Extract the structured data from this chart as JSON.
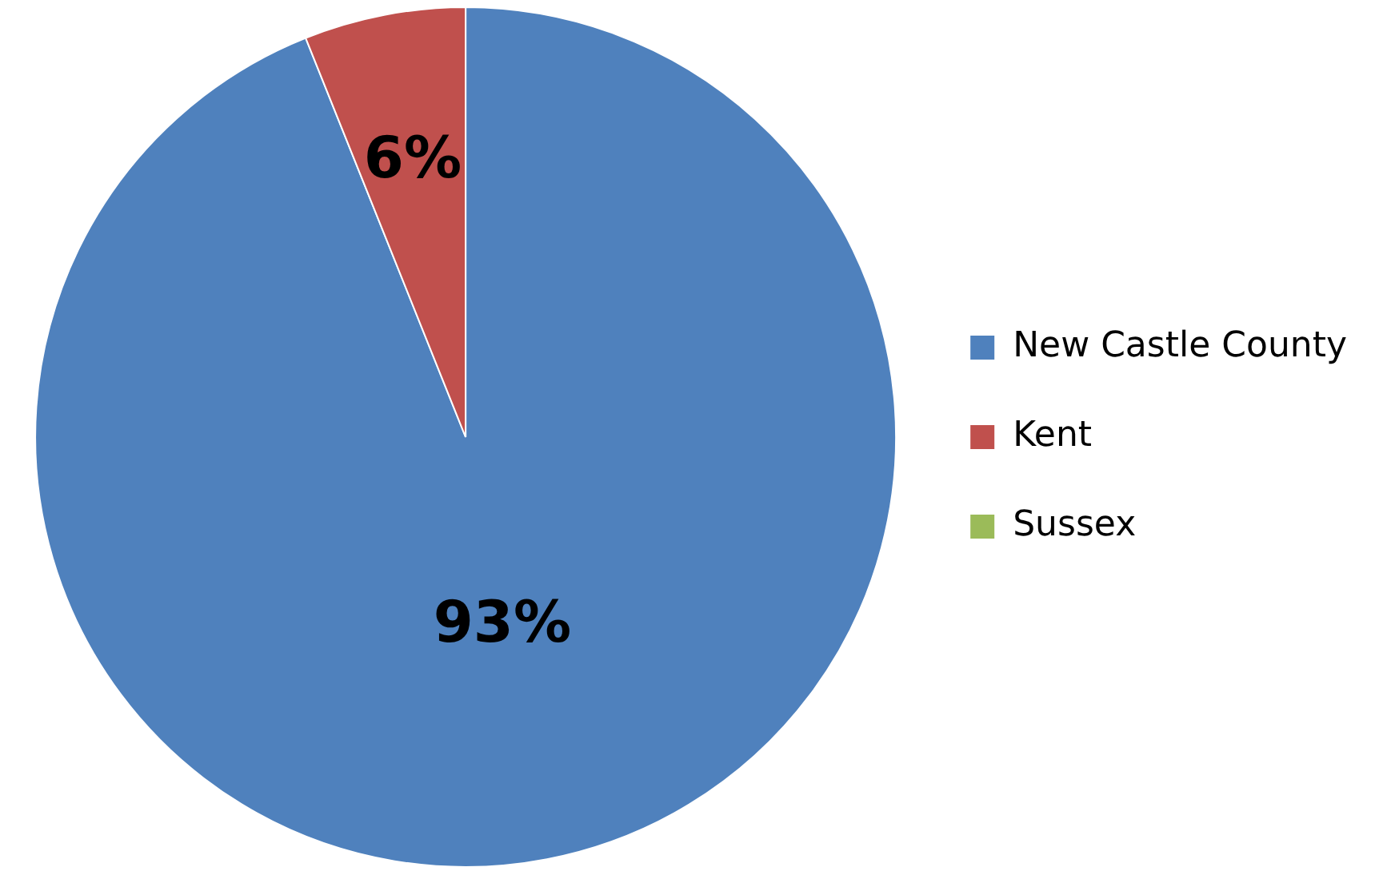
{
  "chart_data": {
    "type": "pie",
    "categories": [
      "New Castle County",
      "Kent",
      "Sussex"
    ],
    "values": [
      93,
      6,
      0
    ],
    "value_labels": [
      "93%",
      "6%",
      null
    ],
    "colors": [
      "#4f81bd",
      "#c0504d",
      "#9bbb59"
    ],
    "legend": "right"
  }
}
